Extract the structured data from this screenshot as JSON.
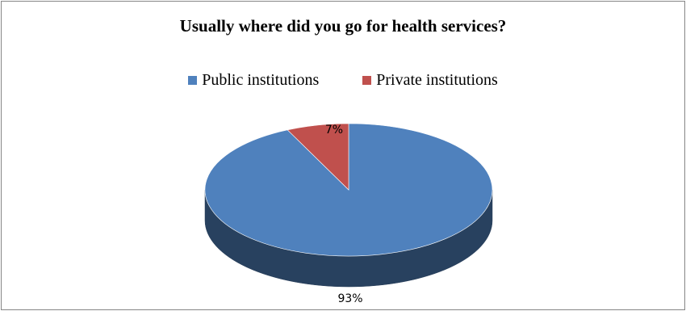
{
  "chart_data": {
    "type": "pie",
    "title": "Usually where did you go for health services?",
    "categories": [
      "Public institutions",
      "Private institutions"
    ],
    "values": [
      93,
      7
    ],
    "data_labels": [
      "93%",
      "7%"
    ],
    "colors": [
      "#4F81BD",
      "#C0504D"
    ],
    "legend_position": "top",
    "style": "3d"
  }
}
